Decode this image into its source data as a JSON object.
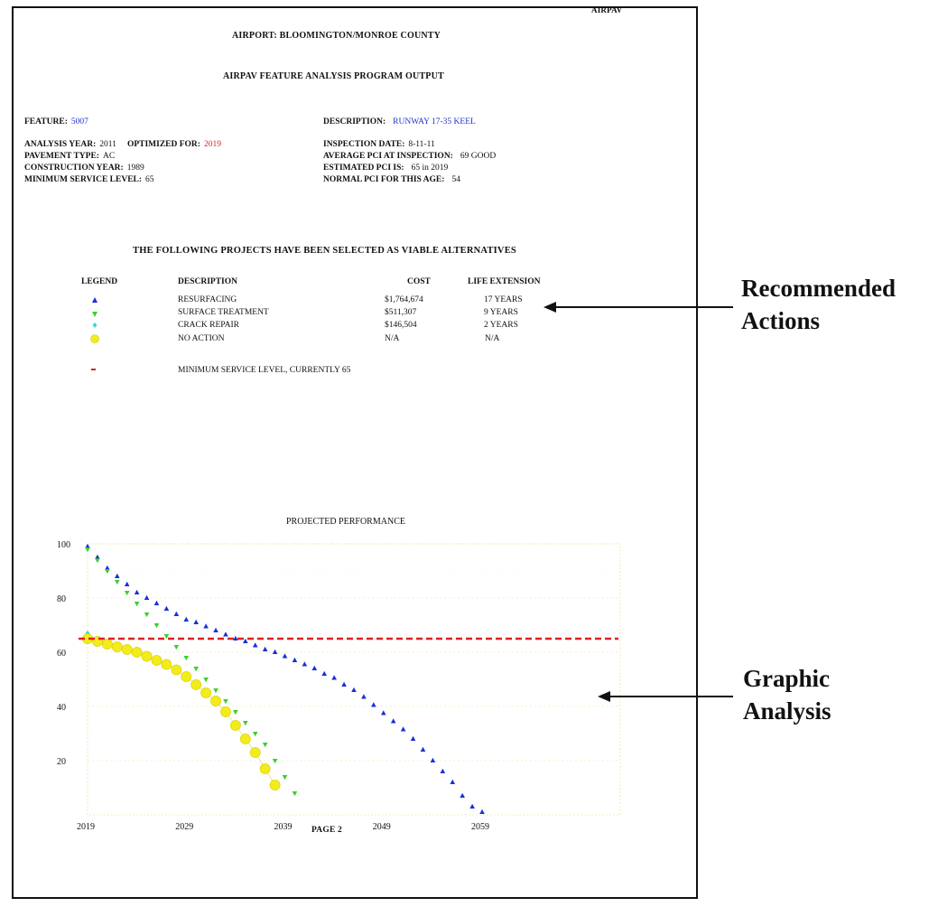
{
  "page": {
    "corner_label": "AIRPAV",
    "airport_line": "AIRPORT:  BLOOMINGTON/MONROE COUNTY",
    "program_title": "AIRPAV FEATURE ANALYSIS PROGRAM OUTPUT",
    "page_label": "PAGE 2"
  },
  "info": {
    "feature_label": "FEATURE:",
    "feature_value": "5007",
    "description_label": "DESCRIPTION:",
    "description_value": "RUNWAY 17-35 KEEL",
    "analysis_year_label": "ANALYSIS YEAR:",
    "analysis_year_value": "2011",
    "optimized_label": "OPTIMIZED FOR:",
    "optimized_value": "2019",
    "pavement_type_label": "PAVEMENT TYPE:",
    "pavement_type_value": "AC",
    "construction_year_label": "CONSTRUCTION YEAR:",
    "construction_year_value": "1989",
    "min_service_label": "MINIMUM SERVICE LEVEL:",
    "min_service_value": "65",
    "inspection_date_label": "INSPECTION DATE:",
    "inspection_date_value": "8-11-11",
    "avg_pci_label": "AVERAGE PCI AT INSPECTION:",
    "avg_pci_value": "69 GOOD",
    "est_pci_label": "ESTIMATED PCI IS:",
    "est_pci_value": "65 in  2019",
    "normal_pci_label": "NORMAL PCI FOR THIS AGE:",
    "normal_pci_value": "54"
  },
  "projects": {
    "heading": "THE FOLLOWING PROJECTS HAVE BEEN SELECTED AS VIABLE ALTERNATIVES",
    "columns": {
      "legend": "LEGEND",
      "description": "DESCRIPTION",
      "cost": "COST",
      "life": "LIFE EXTENSION"
    },
    "rows": [
      {
        "symbol": "triangle-up",
        "color": "#1a2fd6",
        "description": "RESURFACING",
        "cost": "$1,764,674",
        "life": "17 YEARS"
      },
      {
        "symbol": "triangle-down",
        "color": "#3ccf2e",
        "description": "SURFACE TREATMENT",
        "cost": "$511,307",
        "life": "9 YEARS"
      },
      {
        "symbol": "diamond",
        "color": "#33d6e0",
        "description": "CRACK REPAIR",
        "cost": "$146,504",
        "life": "2 YEARS"
      },
      {
        "symbol": "circle",
        "color": "#f2ec1a",
        "description": "NO ACTION",
        "cost": "N/A",
        "life": "N/A"
      }
    ],
    "min_service_note": "MINIMUM SERVICE LEVEL, CURRENTLY 65"
  },
  "callouts": {
    "recommended_line1": "Recommended",
    "recommended_line2": "Actions",
    "graphic_line1": "Graphic",
    "graphic_line2": "Analysis"
  },
  "chart_data": {
    "type": "scatter",
    "title": "PROJECTED PERFORMANCE",
    "xlim": [
      2019,
      2073
    ],
    "ylim": [
      0,
      100
    ],
    "x_ticks": [
      2019,
      2029,
      2039,
      2049,
      2059
    ],
    "y_ticks": [
      20,
      40,
      60,
      80,
      100
    ],
    "threshold": {
      "y": 65,
      "color": "#e02020"
    },
    "series": [
      {
        "name": "RESURFACING",
        "marker": "triangle-up",
        "color": "#1a2fd6",
        "x": [
          2019,
          2020,
          2021,
          2022,
          2023,
          2024,
          2025,
          2026,
          2027,
          2028,
          2029,
          2030,
          2031,
          2032,
          2033,
          2034,
          2035,
          2036,
          2037,
          2038,
          2039,
          2040,
          2041,
          2042,
          2043,
          2044,
          2045,
          2046,
          2047,
          2048,
          2049,
          2050,
          2051,
          2052,
          2053,
          2054,
          2055,
          2056,
          2057,
          2058,
          2059
        ],
        "y": [
          99,
          95,
          91,
          88,
          85,
          82,
          80,
          78,
          76,
          74,
          72,
          71,
          69.5,
          68,
          66.5,
          65,
          64,
          62.5,
          61,
          60,
          58.5,
          57,
          55.5,
          54,
          52,
          50.5,
          48,
          46,
          43.5,
          40.5,
          37.5,
          34.5,
          31.5,
          28,
          24,
          20,
          16,
          12,
          7,
          3,
          1
        ]
      },
      {
        "name": "SURFACE TREATMENT",
        "marker": "triangle-down",
        "color": "#3ccf2e",
        "x": [
          2019,
          2020,
          2021,
          2022,
          2023,
          2024,
          2025,
          2026,
          2027,
          2028,
          2029,
          2030,
          2031,
          2032,
          2033,
          2034,
          2035,
          2036,
          2037,
          2038,
          2039,
          2040
        ],
        "y": [
          98,
          94,
          90,
          86,
          82,
          78,
          74,
          70,
          66,
          62,
          58,
          54,
          50,
          46,
          42,
          38,
          34,
          30,
          26,
          20,
          14,
          8
        ]
      },
      {
        "name": "CRACK REPAIR",
        "marker": "diamond",
        "color": "#33d6e0",
        "x": [
          2019
        ],
        "y": [
          67
        ]
      },
      {
        "name": "NO ACTION",
        "marker": "circle",
        "color": "#f2ec1a",
        "x": [
          2019,
          2020,
          2021,
          2022,
          2023,
          2024,
          2025,
          2026,
          2027,
          2028,
          2029,
          2030,
          2031,
          2032,
          2033,
          2034,
          2035,
          2036,
          2037,
          2038
        ],
        "y": [
          65,
          64,
          63,
          62,
          61,
          60,
          58.5,
          57,
          55.5,
          53.5,
          51,
          48,
          45,
          42,
          38,
          33,
          28,
          23,
          17,
          11
        ]
      }
    ]
  }
}
